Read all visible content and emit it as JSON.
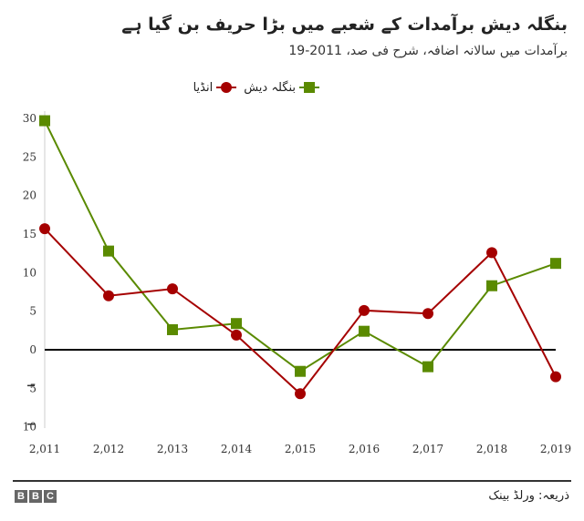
{
  "header": {
    "title": "بنگلہ دیش برآمدات کے شعبے میں بڑا حریف بن گیا ہے",
    "subtitle": "برآمدات میں سالانہ اضافہ، شرح فی صد، 2011-19"
  },
  "legend": {
    "bangladesh": "بنگلہ دیش",
    "india": "انڈیا"
  },
  "footer": {
    "source": "ذریعہ: ورلڈ بینک",
    "logo": [
      "B",
      "B",
      "C"
    ]
  },
  "colors": {
    "bangladesh": "#5a8a00",
    "india": "#a50000",
    "zero_line": "#000000",
    "axis": "#cccccc"
  },
  "chart_data": {
    "type": "line",
    "title": "بنگلہ دیش برآمدات کے شعبے میں بڑا حریف بن گیا ہے",
    "subtitle": "برآمدات میں سالانہ اضافہ، شرح فی صد، 2011-19",
    "xlabel": "",
    "ylabel": "",
    "categories": [
      "2,011",
      "2,012",
      "2,013",
      "2,014",
      "2,015",
      "2,016",
      "2,017",
      "2,018",
      "2,019"
    ],
    "x": [
      2011,
      2012,
      2013,
      2014,
      2015,
      2016,
      2017,
      2018,
      2019
    ],
    "yticks": [
      "30",
      "25",
      "20",
      "15",
      "10",
      "5",
      "0",
      "5",
      "10"
    ],
    "ylim": [
      -10,
      30
    ],
    "grid": false,
    "legend_position": "top",
    "series": [
      {
        "name": "بنگلہ دیش",
        "marker": "square",
        "color": "#5a8a00",
        "values": [
          29.7,
          12.8,
          2.6,
          3.4,
          -2.8,
          2.4,
          -2.2,
          8.3,
          11.2
        ]
      },
      {
        "name": "انڈیا",
        "marker": "circle",
        "color": "#a50000",
        "values": [
          15.7,
          7.0,
          7.9,
          1.9,
          -5.7,
          5.1,
          4.7,
          12.6,
          -3.5
        ]
      }
    ]
  }
}
